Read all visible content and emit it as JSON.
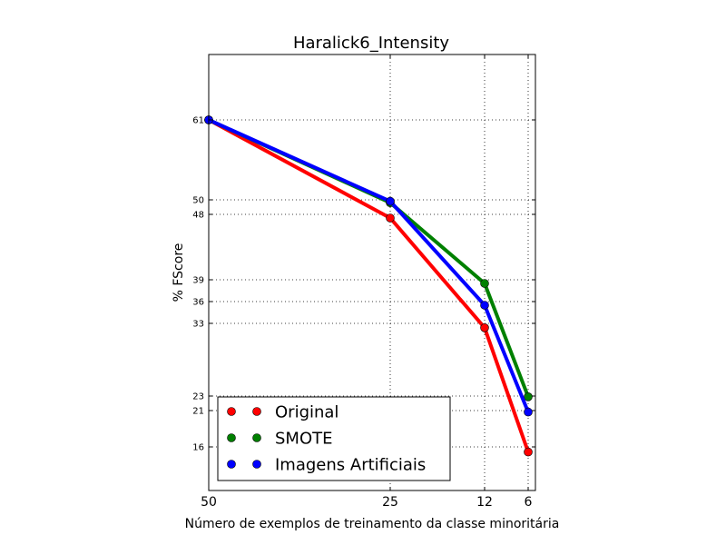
{
  "chart_data": {
    "type": "line",
    "title": "Haralick6_Intensity",
    "xlabel": "Número de exemplos de treinamento da classe minoritária",
    "ylabel": "% FScore",
    "x": [
      50,
      25,
      12,
      6
    ],
    "x_tick_labels": [
      "50",
      "25",
      "12",
      "6"
    ],
    "xlim": [
      50,
      5
    ],
    "ylim": [
      10,
      70
    ],
    "y_ticks": [
      61,
      50,
      48,
      39,
      36,
      33,
      23,
      21,
      16
    ],
    "y_tick_labels": [
      "61",
      "50",
      "48",
      "39",
      "36",
      "33",
      "23",
      "21",
      "16"
    ],
    "grid": true,
    "legend_position": "lower-left",
    "series": [
      {
        "name": "Original",
        "color": "#ff0000",
        "values": [
          61,
          47.5,
          32.4,
          15.3
        ]
      },
      {
        "name": "SMOTE",
        "color": "#008000",
        "values": [
          61,
          49.6,
          38.5,
          22.9
        ]
      },
      {
        "name": "Imagens Artificiais",
        "color": "#0000ff",
        "values": [
          61,
          49.8,
          35.5,
          20.8
        ]
      }
    ]
  }
}
